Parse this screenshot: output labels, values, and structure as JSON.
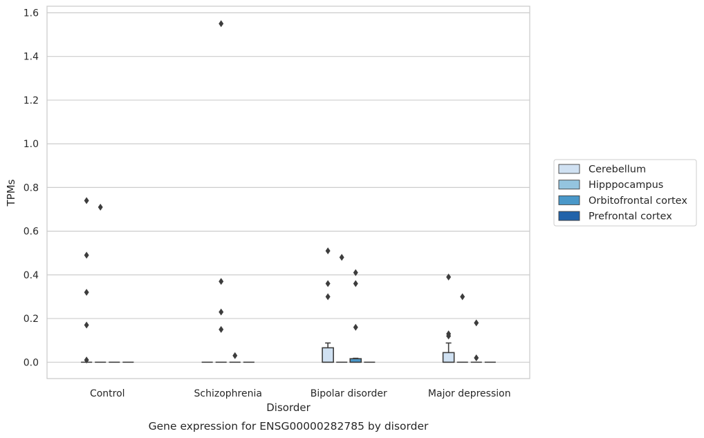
{
  "chart_data": {
    "type": "box",
    "title": "",
    "caption": "Gene expression for ENSG00000282785 by disorder",
    "xlabel": "Disorder",
    "ylabel": "TPMs",
    "ylim": [
      -0.075,
      1.63
    ],
    "yticks": [
      0.0,
      0.2,
      0.4,
      0.6,
      0.8,
      1.0,
      1.2,
      1.4,
      1.6
    ],
    "ytick_labels": [
      "0.0",
      "0.2",
      "0.4",
      "0.6",
      "0.8",
      "1.0",
      "1.2",
      "1.4",
      "1.6"
    ],
    "grid": "horizontal",
    "legend_position": "right",
    "categories": [
      "Control",
      "Schizophrenia",
      "Bipolar disorder",
      "Major depression"
    ],
    "series": [
      {
        "name": "Cerebellum",
        "color": "#d0e1f2",
        "boxes": [
          {
            "q1": 0,
            "median": 0,
            "q3": 0,
            "whisker_low": 0,
            "whisker_high": 0,
            "outliers": [
              0.74,
              0.49,
              0.32,
              0.17,
              0.01
            ]
          },
          {
            "q1": 0,
            "median": 0,
            "q3": 0,
            "whisker_low": 0,
            "whisker_high": 0,
            "outliers": []
          },
          {
            "q1": 0,
            "median": 0,
            "q3": 0.066,
            "whisker_low": 0,
            "whisker_high": 0.088,
            "outliers": [
              0.51,
              0.36,
              0.3
            ]
          },
          {
            "q1": 0,
            "median": 0,
            "q3": 0.044,
            "whisker_low": 0,
            "whisker_high": 0.088,
            "outliers": [
              0.39,
              0.13,
              0.12
            ]
          }
        ]
      },
      {
        "name": "Hipppocampus",
        "color": "#94c4df",
        "boxes": [
          {
            "q1": 0,
            "median": 0,
            "q3": 0,
            "whisker_low": 0,
            "whisker_high": 0,
            "outliers": [
              0.71
            ]
          },
          {
            "q1": 0,
            "median": 0,
            "q3": 0,
            "whisker_low": 0,
            "whisker_high": 0,
            "outliers": [
              1.55,
              0.37,
              0.23,
              0.15
            ]
          },
          {
            "q1": 0,
            "median": 0,
            "q3": 0,
            "whisker_low": 0,
            "whisker_high": 0,
            "outliers": [
              0.48
            ]
          },
          {
            "q1": 0,
            "median": 0,
            "q3": 0,
            "whisker_low": 0,
            "whisker_high": 0,
            "outliers": [
              0.3
            ]
          }
        ]
      },
      {
        "name": "Orbitofrontal cortex",
        "color": "#4a98c9",
        "boxes": [
          {
            "q1": 0,
            "median": 0,
            "q3": 0,
            "whisker_low": 0,
            "whisker_high": 0,
            "outliers": []
          },
          {
            "q1": 0,
            "median": 0,
            "q3": 0,
            "whisker_low": 0,
            "whisker_high": 0,
            "outliers": [
              0.03
            ]
          },
          {
            "q1": 0,
            "median": 0,
            "q3": 0.016,
            "whisker_low": 0,
            "whisker_high": 0.018,
            "outliers": [
              0.41,
              0.36,
              0.16
            ]
          },
          {
            "q1": 0,
            "median": 0,
            "q3": 0,
            "whisker_low": 0,
            "whisker_high": 0,
            "outliers": [
              0.18,
              0.02
            ]
          }
        ]
      },
      {
        "name": "Prefrontal cortex",
        "color": "#2163aa",
        "boxes": [
          {
            "q1": 0,
            "median": 0,
            "q3": 0,
            "whisker_low": 0,
            "whisker_high": 0,
            "outliers": []
          },
          {
            "q1": 0,
            "median": 0,
            "q3": 0,
            "whisker_low": 0,
            "whisker_high": 0,
            "outliers": []
          },
          {
            "q1": 0,
            "median": 0,
            "q3": 0,
            "whisker_low": 0,
            "whisker_high": 0,
            "outliers": []
          },
          {
            "q1": 0,
            "median": 0,
            "q3": 0,
            "whisker_low": 0,
            "whisker_high": 0,
            "outliers": []
          }
        ]
      }
    ]
  }
}
